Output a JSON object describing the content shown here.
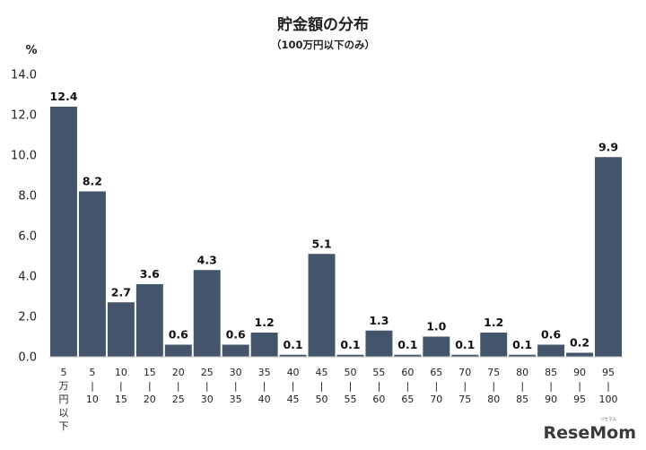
{
  "chart_data": {
    "type": "bar",
    "title": "貯金額の分布",
    "subtitle": "（100万円以下のみ）",
    "ylabel": "%",
    "ylim": [
      0,
      14
    ],
    "yticks": [
      "0.0",
      "2.0",
      "4.0",
      "6.0",
      "8.0",
      "10.0",
      "12.0",
      "14.0"
    ],
    "categories": [
      [
        "5",
        "万",
        "円",
        "以",
        "下"
      ],
      [
        "5",
        "|",
        "10"
      ],
      [
        "10",
        "|",
        "15"
      ],
      [
        "15",
        "|",
        "20"
      ],
      [
        "20",
        "|",
        "25"
      ],
      [
        "25",
        "|",
        "30"
      ],
      [
        "30",
        "|",
        "35"
      ],
      [
        "35",
        "|",
        "40"
      ],
      [
        "40",
        "|",
        "45"
      ],
      [
        "45",
        "|",
        "50"
      ],
      [
        "50",
        "|",
        "55"
      ],
      [
        "55",
        "|",
        "60"
      ],
      [
        "60",
        "|",
        "65"
      ],
      [
        "65",
        "|",
        "70"
      ],
      [
        "70",
        "|",
        "75"
      ],
      [
        "75",
        "|",
        "80"
      ],
      [
        "80",
        "|",
        "85"
      ],
      [
        "85",
        "|",
        "90"
      ],
      [
        "90",
        "|",
        "95"
      ],
      [
        "95",
        "|",
        "100"
      ]
    ],
    "values": [
      12.4,
      8.2,
      2.7,
      3.6,
      0.6,
      4.3,
      0.6,
      1.2,
      0.1,
      5.1,
      0.1,
      1.3,
      0.1,
      1.0,
      0.1,
      1.2,
      0.1,
      0.6,
      0.2,
      9.9
    ],
    "data_labels": [
      "12.4",
      "8.2",
      "2.7",
      "3.6",
      "0.6",
      "4.3",
      "0.6",
      "1.2",
      "0.1",
      "5.1",
      "0.1",
      "1.3",
      "0.1",
      "1.0",
      "0.1",
      "1.2",
      "0.1",
      "0.6",
      "0.2",
      "9.9"
    ],
    "bar_color": "#44546a",
    "grid": false,
    "legend": "none"
  },
  "logo": {
    "text": "ReseMom",
    "ruby": "リセマム"
  }
}
